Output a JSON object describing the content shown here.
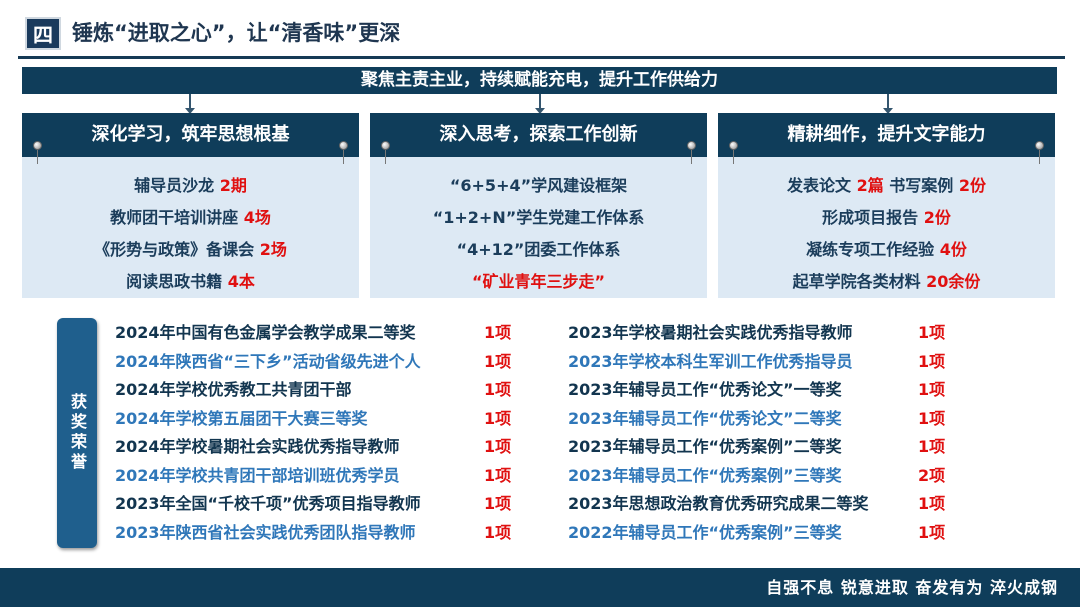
{
  "header": {
    "number": "四",
    "title": "锤炼“进取之心”，让“清香味”更深"
  },
  "banner": "聚焦主责主业，持续赋能充电，提升工作供给力",
  "panels": [
    {
      "title": "深化学习，筑牢思想根基",
      "lines": [
        {
          "text": "辅导员沙龙 ",
          "hl": "2期"
        },
        {
          "text": "教师团干培训讲座 ",
          "hl": "4场"
        },
        {
          "text": "《形势与政策》备课会 ",
          "hl": "2场"
        },
        {
          "text": "阅读思政书籍 ",
          "hl": "4本"
        }
      ]
    },
    {
      "title": "深入思考，探索工作创新",
      "lines": [
        {
          "text": "“6+5+4”学风建设框架",
          "hl": ""
        },
        {
          "text": "“1+2+N”学生党建工作体系",
          "hl": ""
        },
        {
          "text": "“4+12”团委工作体系",
          "hl": ""
        },
        {
          "text": "",
          "hl": "“矿业青年三步走”"
        }
      ]
    },
    {
      "title": "精耕细作，提升文字能力",
      "lines": [
        {
          "text": "发表论文 ",
          "hl": "2篇",
          "text2": " 书写案例 ",
          "hl2": "2份"
        },
        {
          "text": "形成项目报告 ",
          "hl": "2份"
        },
        {
          "text": "凝练专项工作经验 ",
          "hl": "4份"
        },
        {
          "text": "起草学院各类材料 ",
          "hl": "20余份"
        }
      ]
    }
  ],
  "awards": {
    "label": "获奖荣誉",
    "left": [
      {
        "name": "2024年中国有色金属学会教学成果二等奖",
        "count": "1项"
      },
      {
        "name": "2024年陕西省“三下乡”活动省级先进个人",
        "count": "1项"
      },
      {
        "name": "2024年学校优秀教工共青团干部",
        "count": "1项"
      },
      {
        "name": "2024年学校第五届团干大赛三等奖",
        "count": "1项"
      },
      {
        "name": "2024年学校暑期社会实践优秀指导教师",
        "count": "1项"
      },
      {
        "name": "2024年学校共青团干部培训班优秀学员",
        "count": "1项"
      },
      {
        "name": "2023年全国“千校千项”优秀项目指导教师",
        "count": "1项"
      },
      {
        "name": "2023年陕西省社会实践优秀团队指导教师",
        "count": "1项"
      }
    ],
    "right": [
      {
        "name": "2023年学校暑期社会实践优秀指导教师",
        "count": "1项"
      },
      {
        "name": "2023年学校本科生军训工作优秀指导员",
        "count": "1项"
      },
      {
        "name": "2023年辅导员工作“优秀论文”一等奖",
        "count": "1项"
      },
      {
        "name": "2023年辅导员工作“优秀论文”二等奖",
        "count": "1项"
      },
      {
        "name": "2023年辅导员工作“优秀案例”二等奖",
        "count": "1项"
      },
      {
        "name": "2023年辅导员工作“优秀案例”三等奖",
        "count": "2项"
      },
      {
        "name": "2023年思想政治教育优秀研究成果二等奖",
        "count": "1项"
      },
      {
        "name": "2022年辅导员工作“优秀案例”三等奖",
        "count": "1项"
      }
    ]
  },
  "footer": {
    "slogan": "自强不息 锐意进取 奋发有为 淬火成钢"
  },
  "colors": {
    "navy": "#0f3d5a",
    "panel": "#dde9f4",
    "highlight": "#e01010",
    "blue_text": "#2f77b9"
  }
}
